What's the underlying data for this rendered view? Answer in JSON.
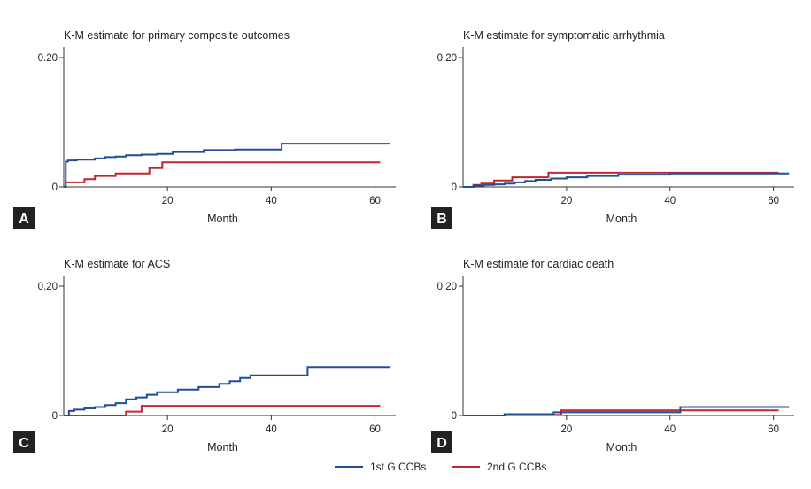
{
  "figure": {
    "legend": [
      {
        "label": "1st G CCBs",
        "color": "#1f4e96"
      },
      {
        "label": "2nd G CCBs",
        "color": "#c0272d"
      }
    ]
  },
  "chart_data": [
    {
      "type": "line",
      "panel_letter": "A",
      "title": "K-M estimate for primary composite outcomes",
      "xlabel": "Month",
      "ylabel": "",
      "xlim": [
        0,
        64
      ],
      "ylim": [
        0,
        0.2
      ],
      "xticks": [
        20,
        40,
        60
      ],
      "yticks": [
        {
          "v": 0,
          "label": "0"
        },
        {
          "v": 0.2,
          "label": "0.20"
        }
      ],
      "series": [
        {
          "name": "1st G CCBs",
          "color": "#1f4e96",
          "x": [
            0,
            0.4,
            0.8,
            2.5,
            6,
            8,
            10,
            12,
            15,
            18,
            21,
            27,
            33,
            42,
            63
          ],
          "y": [
            0,
            0.039,
            0.041,
            0.042,
            0.044,
            0.046,
            0.047,
            0.049,
            0.05,
            0.051,
            0.054,
            0.057,
            0.058,
            0.067,
            0.067
          ]
        },
        {
          "name": "2nd G CCBs",
          "color": "#c0272d",
          "x": [
            0,
            0.4,
            4,
            6,
            10,
            16.5,
            19,
            61
          ],
          "y": [
            0,
            0.007,
            0.012,
            0.017,
            0.021,
            0.029,
            0.038,
            0.038
          ]
        }
      ]
    },
    {
      "type": "line",
      "panel_letter": "B",
      "title": "K-M estimate for symptomatic arrhythmia",
      "xlabel": "Month",
      "ylabel": "",
      "xlim": [
        0,
        64
      ],
      "ylim": [
        0,
        0.2
      ],
      "xticks": [
        20,
        40,
        60
      ],
      "yticks": [
        {
          "v": 0,
          "label": "0"
        },
        {
          "v": 0.2,
          "label": "0.20"
        }
      ],
      "series": [
        {
          "name": "1st G CCBs",
          "color": "#1f4e96",
          "x": [
            0,
            2,
            4,
            6,
            8,
            10,
            12,
            14,
            17,
            20,
            24,
            30,
            40,
            63
          ],
          "y": [
            0,
            0.002,
            0.003,
            0.004,
            0.005,
            0.007,
            0.009,
            0.011,
            0.013,
            0.015,
            0.017,
            0.019,
            0.021,
            0.021
          ]
        },
        {
          "name": "2nd G CCBs",
          "color": "#c0272d",
          "x": [
            0,
            2,
            3.5,
            6,
            9.5,
            16.5,
            61
          ],
          "y": [
            0,
            0.003,
            0.005,
            0.01,
            0.015,
            0.022,
            0.022
          ]
        }
      ]
    },
    {
      "type": "line",
      "panel_letter": "C",
      "title": "K-M estimate for ACS",
      "xlabel": "Month",
      "ylabel": "",
      "xlim": [
        0,
        64
      ],
      "ylim": [
        0,
        0.2
      ],
      "xticks": [
        20,
        40,
        60
      ],
      "yticks": [
        {
          "v": 0,
          "label": "0"
        },
        {
          "v": 0.2,
          "label": "0.20"
        }
      ],
      "series": [
        {
          "name": "1st G CCBs",
          "color": "#1f4e96",
          "x": [
            0,
            1,
            2,
            4,
            6,
            8,
            10,
            12,
            14,
            16,
            18,
            22,
            26,
            30,
            32,
            34,
            36,
            47,
            63
          ],
          "y": [
            0,
            0.007,
            0.009,
            0.011,
            0.013,
            0.016,
            0.019,
            0.025,
            0.028,
            0.032,
            0.036,
            0.04,
            0.044,
            0.049,
            0.053,
            0.058,
            0.062,
            0.075,
            0.075
          ]
        },
        {
          "name": "2nd G CCBs",
          "color": "#c0272d",
          "x": [
            0,
            12,
            15,
            61
          ],
          "y": [
            0,
            0.006,
            0.015,
            0.015
          ]
        }
      ]
    },
    {
      "type": "line",
      "panel_letter": "D",
      "title": "K-M estimate for cardiac death",
      "xlabel": "Month",
      "ylabel": "",
      "xlim": [
        0,
        64
      ],
      "ylim": [
        0,
        0.2
      ],
      "xticks": [
        20,
        40,
        60
      ],
      "yticks": [
        {
          "v": 0,
          "label": "0"
        },
        {
          "v": 0.2,
          "label": "0.20"
        }
      ],
      "series": [
        {
          "name": "1st G CCBs",
          "color": "#1f4e96",
          "x": [
            0,
            8,
            17.5,
            42,
            63
          ],
          "y": [
            0,
            0.002,
            0.005,
            0.013,
            0.013
          ]
        },
        {
          "name": "2nd G CCBs",
          "color": "#c0272d",
          "x": [
            0,
            8,
            19,
            61
          ],
          "y": [
            0,
            0.001,
            0.008,
            0.008
          ]
        }
      ]
    }
  ]
}
